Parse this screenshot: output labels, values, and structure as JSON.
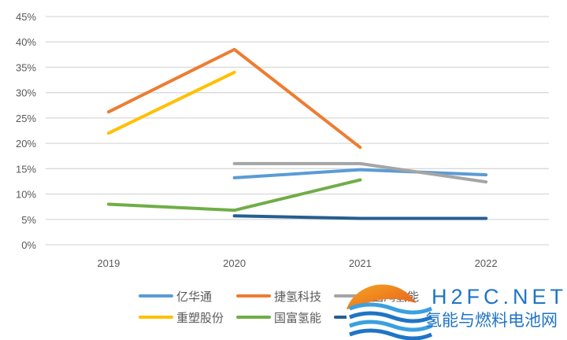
{
  "chart_data": {
    "type": "line",
    "title": "",
    "xlabel": "",
    "ylabel": "",
    "categories": [
      "2019",
      "2020",
      "2021",
      "2022"
    ],
    "ylim": [
      0,
      45
    ],
    "yticks": [
      "0%",
      "5%",
      "10%",
      "15%",
      "20%",
      "25%",
      "30%",
      "35%",
      "40%",
      "45%"
    ],
    "grid": true,
    "legend_position": "bottom",
    "series": [
      {
        "name": "亿华通",
        "color": "#5B9BD5",
        "values": [
          null,
          13.2,
          14.8,
          13.8
        ]
      },
      {
        "name": "捷氢科技",
        "color": "#ED7D31",
        "values": [
          26.2,
          38.5,
          19.2,
          null
        ]
      },
      {
        "name": "国鸿氢能",
        "color": "#A5A5A5",
        "values": [
          null,
          16.0,
          16.0,
          12.4
        ]
      },
      {
        "name": "重塑股份",
        "color": "#FFC000",
        "values": [
          22.0,
          34.0,
          null,
          null
        ]
      },
      {
        "name": "国富氢能",
        "color": "#70AD47",
        "values": [
          8.0,
          6.8,
          12.8,
          null
        ]
      },
      {
        "name": "氢盛",
        "color": "#255E91",
        "values": [
          null,
          5.7,
          5.2,
          5.2
        ]
      }
    ]
  },
  "watermark": {
    "text": "H2FC.NET",
    "subtitle": "氢能与燃料电池网"
  }
}
